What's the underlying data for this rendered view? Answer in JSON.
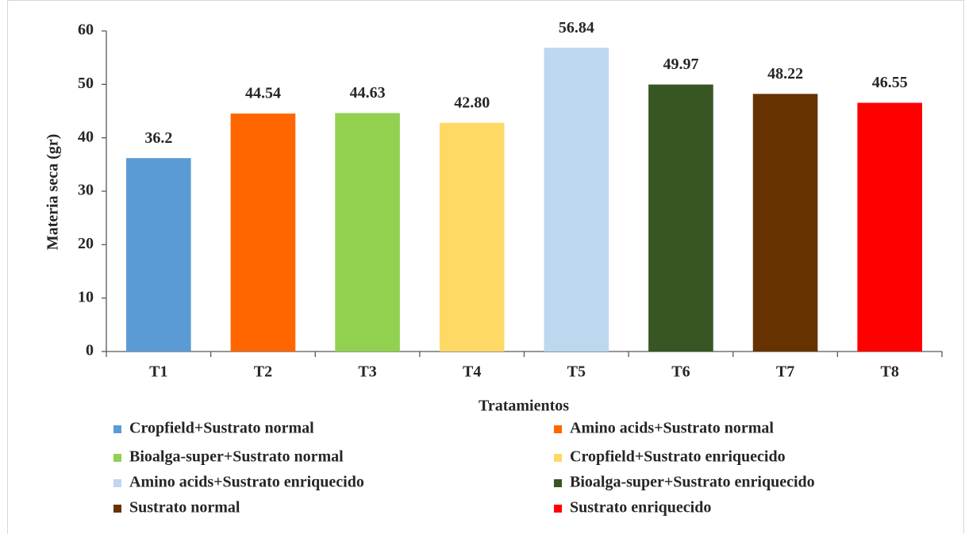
{
  "chart_data": {
    "type": "bar",
    "y_label": "Materia seca (gr)",
    "x_label": "Tratamientos",
    "categories": [
      "T1",
      "T2",
      "T3",
      "T4",
      "T5",
      "T6",
      "T7",
      "T8"
    ],
    "values": [
      36.2,
      44.54,
      44.63,
      42.8,
      56.84,
      49.97,
      48.22,
      46.55
    ],
    "value_labels": [
      "36.2",
      "44.54",
      "44.63",
      "42.80",
      "56.84",
      "49.97",
      "48.22",
      "46.55"
    ],
    "colors": [
      "#5b9bd5",
      "#ff6600",
      "#92d050",
      "#ffd966",
      "#bdd7ee",
      "#375623",
      "#663300",
      "#ff0000"
    ],
    "legend_labels": [
      "Cropfield+Sustrato normal",
      "Amino acids+Sustrato normal",
      "Bioalga-super+Sustrato normal",
      "Cropfield+Sustrato enriquecido",
      "Amino acids+Sustrato enriquecido",
      "Bioalga-super+Sustrato enriquecido",
      "Sustrato normal",
      "Sustrato enriquecido"
    ],
    "ylim": [
      0,
      60
    ],
    "yticks": [
      0,
      10,
      20,
      30,
      40,
      50,
      60
    ],
    "grid": false
  }
}
